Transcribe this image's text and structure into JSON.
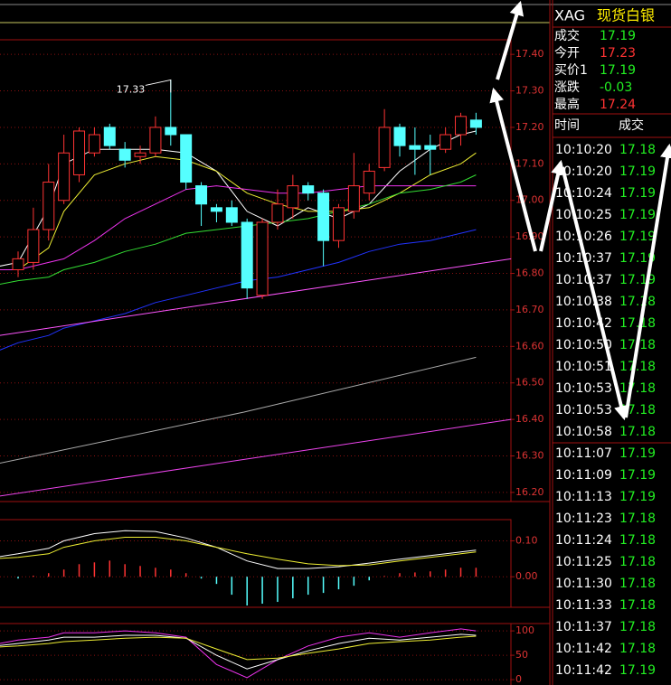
{
  "quote": {
    "symbol": "XAG",
    "name": "现货白银",
    "rows": [
      {
        "label": "成交",
        "value": "17.19",
        "color": "#22ee22"
      },
      {
        "label": "今开",
        "value": "17.23",
        "color": "#ff3333"
      },
      {
        "label": "买价1",
        "value": "17.19",
        "color": "#22ee22"
      },
      {
        "label": "涨跌",
        "value": "-0.03",
        "color": "#22ee22"
      },
      {
        "label": "最高",
        "value": "17.24",
        "color": "#ff3333"
      }
    ]
  },
  "trades": {
    "headers": [
      "时间",
      "成交"
    ],
    "rows": [
      [
        "10:10:20",
        "17.18"
      ],
      [
        "10:10:20",
        "17.19"
      ],
      [
        "10:10:24",
        "17.19"
      ],
      [
        "10:10:25",
        "17.19"
      ],
      [
        "10:10:26",
        "17.19"
      ],
      [
        "10:10:37",
        "17.19"
      ],
      [
        "10:10:37",
        "17.19"
      ],
      [
        "10:10:38",
        "17.18"
      ],
      [
        "10:10:42",
        "17.18"
      ],
      [
        "10:10:50",
        "17.18"
      ],
      [
        "10:10:51",
        "17.18"
      ],
      [
        "10:10:53",
        "17.18"
      ],
      [
        "10:10:53",
        "17.18"
      ],
      [
        "10:10:58",
        "17.18"
      ],
      [
        "10:11:07",
        "17.19"
      ],
      [
        "10:11:09",
        "17.19"
      ],
      [
        "10:11:13",
        "17.19"
      ],
      [
        "10:11:23",
        "17.18"
      ],
      [
        "10:11:24",
        "17.18"
      ],
      [
        "10:11:25",
        "17.18"
      ],
      [
        "10:11:30",
        "17.18"
      ],
      [
        "10:11:33",
        "17.18"
      ],
      [
        "10:11:37",
        "17.18"
      ],
      [
        "10:11:42",
        "17.18"
      ],
      [
        "10:11:42",
        "17.19"
      ]
    ]
  },
  "chart_data": [
    {
      "type": "candlestick",
      "up_color": "#ff3333",
      "down_color": "#55ffff",
      "ylim": [
        16.175,
        17.44
      ],
      "yticks": [
        {
          "value": 17.4,
          "label": "17.40"
        },
        {
          "value": 17.3,
          "label": "17.30"
        },
        {
          "value": 17.2,
          "label": "17.20"
        },
        {
          "value": 17.1,
          "label": "17.10"
        },
        {
          "value": 17.0,
          "label": "17.00"
        },
        {
          "value": 16.9,
          "label": "16.90"
        },
        {
          "value": 16.8,
          "label": "16.80"
        },
        {
          "value": 16.7,
          "label": "16.70"
        },
        {
          "value": 16.6,
          "label": "16.60"
        },
        {
          "value": 16.5,
          "label": "16.50"
        },
        {
          "value": 16.4,
          "label": "16.40"
        },
        {
          "value": 16.3,
          "label": "16.30"
        },
        {
          "value": 16.2,
          "label": "16.20"
        }
      ],
      "grid": true,
      "open": [
        16.81,
        16.83,
        16.92,
        17.0,
        17.07,
        17.13,
        17.2,
        17.14,
        17.12,
        17.13,
        17.2,
        17.18,
        17.04,
        16.98,
        16.98,
        16.94,
        16.74,
        16.94,
        16.98,
        17.04,
        17.02,
        16.89,
        16.97,
        17.02,
        17.09,
        17.2,
        17.15,
        17.15,
        17.14,
        17.18,
        17.22
      ],
      "high": [
        16.86,
        16.98,
        17.1,
        17.18,
        17.2,
        17.2,
        17.21,
        17.16,
        17.15,
        17.23,
        17.33,
        17.18,
        17.05,
        16.99,
        17.0,
        16.95,
        16.95,
        17.03,
        17.07,
        17.05,
        17.03,
        16.99,
        17.13,
        17.1,
        17.25,
        17.21,
        17.2,
        17.18,
        17.2,
        17.24,
        17.24
      ],
      "low": [
        16.79,
        16.81,
        16.89,
        16.99,
        17.05,
        17.12,
        17.14,
        17.09,
        17.1,
        17.12,
        17.15,
        17.03,
        16.93,
        16.94,
        16.93,
        16.73,
        16.73,
        16.92,
        16.95,
        17.0,
        16.82,
        16.87,
        16.95,
        17.0,
        17.08,
        17.12,
        17.07,
        17.07,
        17.13,
        17.15,
        17.18
      ],
      "close": [
        16.84,
        16.92,
        17.05,
        17.13,
        17.19,
        17.18,
        17.15,
        17.11,
        17.13,
        17.2,
        17.18,
        17.05,
        16.99,
        16.97,
        16.94,
        16.76,
        16.94,
        16.99,
        17.04,
        17.02,
        16.89,
        16.98,
        17.04,
        17.08,
        17.2,
        17.15,
        17.14,
        17.14,
        17.18,
        17.23,
        17.2
      ],
      "annotations": [
        {
          "text": "17.33",
          "index": 10
        }
      ],
      "lines": [
        {
          "color": "#ffffff",
          "x": [
            -1.2,
            0,
            2,
            3,
            5,
            7,
            9,
            11,
            13,
            15,
            17,
            19,
            21,
            23,
            25,
            27,
            29,
            30
          ],
          "values": [
            16.82,
            16.83,
            16.98,
            17.1,
            17.14,
            17.14,
            17.14,
            17.13,
            17.08,
            16.97,
            16.93,
            16.98,
            16.95,
            16.99,
            17.08,
            17.14,
            17.18,
            17.19
          ]
        },
        {
          "color": "#eeee33",
          "x": [
            -1.2,
            0,
            2,
            3,
            5,
            7,
            9,
            11,
            13,
            15,
            17,
            19,
            21,
            23,
            25,
            27,
            29,
            30
          ],
          "values": [
            16.81,
            16.81,
            16.87,
            16.97,
            17.07,
            17.1,
            17.12,
            17.11,
            17.08,
            17.02,
            16.99,
            16.97,
            16.97,
            16.98,
            17.02,
            17.07,
            17.1,
            17.13
          ]
        },
        {
          "color": "#ee33ee",
          "x": [
            -1.2,
            0,
            2,
            3,
            5,
            7,
            9,
            11,
            13,
            15,
            17,
            19,
            21,
            23,
            25,
            27,
            29,
            30
          ],
          "values": [
            16.81,
            16.81,
            16.83,
            16.84,
            16.89,
            16.95,
            16.99,
            17.03,
            17.04,
            17.03,
            17.02,
            17.02,
            17.03,
            17.04,
            17.04,
            17.04,
            17.04,
            17.04
          ]
        },
        {
          "color": "#33dd33",
          "x": [
            -1.2,
            0,
            2,
            3,
            5,
            7,
            9,
            11,
            13,
            15,
            17,
            19,
            21,
            23,
            25,
            27,
            29,
            30
          ],
          "values": [
            16.77,
            16.78,
            16.79,
            16.81,
            16.83,
            16.86,
            16.88,
            16.91,
            16.92,
            16.93,
            16.94,
            16.95,
            16.97,
            16.99,
            17.02,
            17.03,
            17.05,
            17.07
          ]
        },
        {
          "color": "#2233ff",
          "x": [
            -1.2,
            0,
            2,
            3,
            5,
            7,
            9,
            11,
            13,
            15,
            17,
            19,
            21,
            23,
            25,
            27,
            29,
            30
          ],
          "values": [
            16.59,
            16.61,
            16.63,
            16.65,
            16.67,
            16.69,
            16.72,
            16.74,
            16.76,
            16.78,
            16.79,
            16.81,
            16.83,
            16.86,
            16.88,
            16.89,
            16.91,
            16.92
          ]
        },
        {
          "color": "#ff55ff",
          "x": [
            -1.2,
            32.3
          ],
          "values": [
            16.63,
            16.84
          ]
        },
        {
          "color": "#aaaaaa",
          "x": [
            -1.2,
            14.8,
            30
          ],
          "values": [
            16.28,
            16.42,
            16.57
          ]
        },
        {
          "color": "#ee44ee",
          "x": [
            -1.2,
            32.3
          ],
          "values": [
            16.19,
            16.4
          ]
        }
      ]
    },
    {
      "type": "macd",
      "pos_color": "#ff3333",
      "neg_color": "#55ffff",
      "ylim": [
        -0.085,
        0.159
      ],
      "yticks": [
        {
          "value": 0.1,
          "label": "0.10"
        },
        {
          "value": 0,
          "label": "0.00"
        }
      ],
      "grid": true,
      "bars": [
        -0.005,
        0.003,
        0.01,
        0.02,
        0.035,
        0.04,
        0.045,
        0.035,
        0.03,
        0.025,
        0.02,
        0.01,
        -0.005,
        -0.02,
        -0.05,
        -0.08,
        -0.075,
        -0.07,
        -0.06,
        -0.05,
        -0.045,
        -0.035,
        -0.025,
        -0.01,
        0.002,
        0.01,
        0.012,
        0.015,
        0.02,
        0.025,
        0.025
      ],
      "lines": [
        {
          "color": "#ffffff",
          "x": [
            -1.2,
            0,
            2,
            3,
            5,
            7,
            9,
            11,
            13,
            15,
            17,
            19,
            21,
            23,
            25,
            27,
            29,
            30
          ],
          "values": [
            0.056,
            0.064,
            0.079,
            0.1,
            0.12,
            0.128,
            0.126,
            0.108,
            0.082,
            0.044,
            0.023,
            0.023,
            0.028,
            0.038,
            0.049,
            0.059,
            0.069,
            0.074
          ]
        },
        {
          "color": "#eeee33",
          "x": [
            -1.2,
            0,
            2,
            3,
            5,
            7,
            9,
            11,
            13,
            15,
            17,
            19,
            21,
            23,
            25,
            27,
            29,
            30
          ],
          "values": [
            0.051,
            0.054,
            0.064,
            0.082,
            0.1,
            0.11,
            0.11,
            0.1,
            0.082,
            0.064,
            0.049,
            0.036,
            0.031,
            0.033,
            0.044,
            0.054,
            0.064,
            0.069
          ]
        }
      ]
    },
    {
      "type": "kdj",
      "ylim": [
        -11,
        115
      ],
      "yticks": [
        100,
        50,
        0
      ],
      "grid": true,
      "lines": [
        {
          "color": "#ee33ee",
          "x": [
            -1.2,
            0,
            2,
            3,
            5,
            7,
            9,
            11,
            13,
            15,
            17,
            19,
            21,
            23,
            25,
            27,
            29,
            30
          ],
          "values": [
            74,
            81,
            87,
            96,
            96,
            100,
            96,
            87,
            31,
            4,
            41,
            69,
            87,
            96,
            87,
            96,
            104,
            100
          ]
        },
        {
          "color": "#ffffff",
          "x": [
            -1.2,
            0,
            2,
            3,
            5,
            7,
            9,
            11,
            13,
            15,
            17,
            19,
            21,
            23,
            25,
            27,
            29,
            30
          ],
          "values": [
            70,
            74,
            81,
            87,
            87,
            91,
            91,
            85,
            50,
            22,
            41,
            59,
            74,
            85,
            81,
            87,
            93,
            91
          ]
        },
        {
          "color": "#eeee33",
          "x": [
            -1.2,
            0,
            2,
            3,
            5,
            7,
            9,
            11,
            13,
            15,
            17,
            19,
            21,
            23,
            25,
            27,
            29,
            30
          ],
          "values": [
            67,
            69,
            74,
            78,
            81,
            85,
            87,
            85,
            63,
            41,
            44,
            54,
            63,
            74,
            78,
            81,
            87,
            89
          ]
        }
      ]
    }
  ]
}
